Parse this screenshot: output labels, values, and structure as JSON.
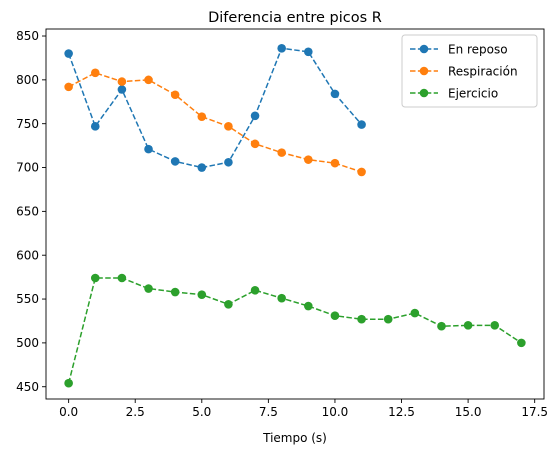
{
  "chart_data": {
    "type": "line",
    "title": "Diferencia entre picos R",
    "xlabel": "Tiempo (s)",
    "ylabel": "",
    "xlim": [
      -0.85,
      17.85
    ],
    "ylim": [
      436,
      858
    ],
    "xticks": [
      0.0,
      2.5,
      5.0,
      7.5,
      10.0,
      12.5,
      15.0,
      17.5
    ],
    "xtick_labels": [
      "0.0",
      "2.5",
      "5.0",
      "7.5",
      "10.0",
      "12.5",
      "15.0",
      "17.5"
    ],
    "yticks": [
      450,
      500,
      550,
      600,
      650,
      700,
      750,
      800,
      850
    ],
    "ytick_labels": [
      "450",
      "500",
      "550",
      "600",
      "650",
      "700",
      "750",
      "800",
      "850"
    ],
    "grid": false,
    "legend_position": "top-right",
    "line_style": "dashed",
    "marker": "circle",
    "series": [
      {
        "name": "En reposo",
        "color": "#1f77b4",
        "x": [
          0,
          1,
          2,
          3,
          4,
          5,
          6,
          7,
          8,
          9,
          10,
          11
        ],
        "values": [
          830,
          747,
          789,
          721,
          707,
          700,
          706,
          759,
          836,
          832,
          784,
          749
        ]
      },
      {
        "name": "Respiración",
        "color": "#ff7f0e",
        "x": [
          0,
          1,
          2,
          3,
          4,
          5,
          6,
          7,
          8,
          9,
          10,
          11
        ],
        "values": [
          792,
          808,
          798,
          800,
          783,
          758,
          747,
          727,
          717,
          709,
          705,
          695
        ]
      },
      {
        "name": "Ejercicio",
        "color": "#2ca02c",
        "x": [
          0,
          1,
          2,
          3,
          4,
          5,
          6,
          7,
          8,
          9,
          10,
          11,
          12,
          13,
          14,
          15,
          16,
          17
        ],
        "values": [
          454,
          574,
          574,
          562,
          558,
          555,
          544,
          560,
          551,
          542,
          531,
          527,
          527,
          534,
          519,
          520,
          520,
          500
        ]
      }
    ]
  }
}
